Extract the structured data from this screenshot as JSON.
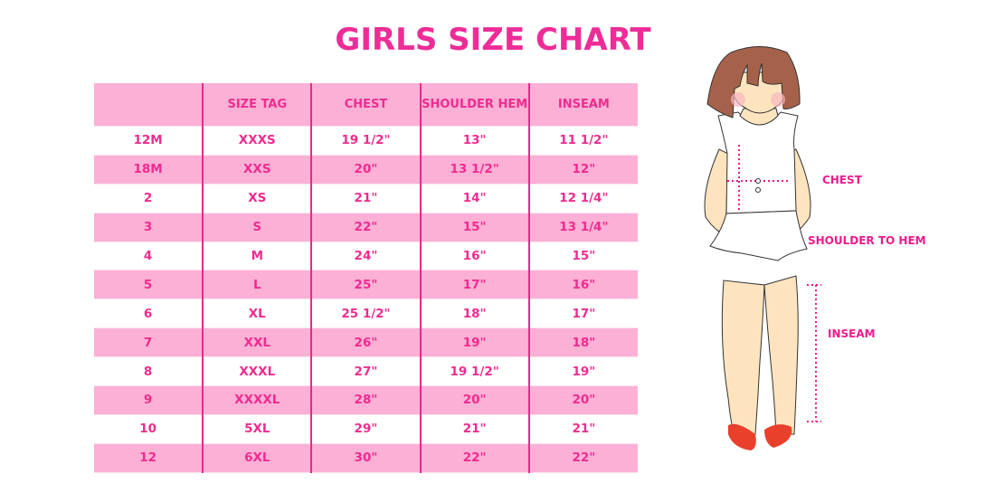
{
  "title": "GIRLS SIZE CHART",
  "table": {
    "headers": [
      "",
      "SIZE TAG",
      "CHEST",
      "SHOULDER HEM",
      "INSEAM"
    ],
    "rows": [
      [
        "12M",
        "XXXS",
        "19 1/2\"",
        "13\"",
        "11 1/2\""
      ],
      [
        "18M",
        "XXS",
        "20\"",
        "13 1/2\"",
        "12\""
      ],
      [
        "2",
        "XS",
        "21\"",
        "14\"",
        "12 1/4\""
      ],
      [
        "3",
        "S",
        "22\"",
        "15\"",
        "13 1/4\""
      ],
      [
        "4",
        "M",
        "24\"",
        "16\"",
        "15\""
      ],
      [
        "5",
        "L",
        "25\"",
        "17\"",
        "16\""
      ],
      [
        "6",
        "XL",
        "25 1/2\"",
        "18\"",
        "17\""
      ],
      [
        "7",
        "XXL",
        "26\"",
        "19\"",
        "18\""
      ],
      [
        "8",
        "XXXL",
        "27\"",
        "19 1/2\"",
        "19\""
      ],
      [
        "9",
        "XXXXL",
        "28\"",
        "20\"",
        "20\""
      ],
      [
        "10",
        "5XL",
        "29\"",
        "21\"",
        "21\""
      ],
      [
        "12",
        "6XL",
        "30\"",
        "22\"",
        "22\""
      ]
    ]
  },
  "figure": {
    "labels": {
      "chest": "CHEST",
      "shoulder_to_hem": "SHOULDER TO HEM",
      "inseam": "INSEAM"
    }
  },
  "colors": {
    "accent": "#ee2c97",
    "row_pink": "#fcb0d6"
  }
}
